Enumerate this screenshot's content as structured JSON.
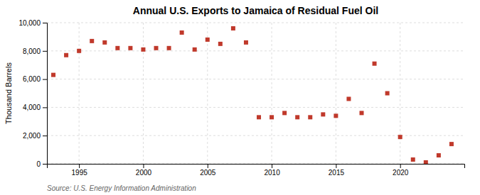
{
  "chart_data": {
    "type": "scatter",
    "title": "Annual U.S. Exports to Jamaica of Residual Fuel Oil",
    "ylabel": "Thousand Barrels",
    "source": "Source: U.S. Energy Information Administration",
    "x": [
      1993,
      1994,
      1995,
      1996,
      1997,
      1998,
      1999,
      2000,
      2001,
      2002,
      2003,
      2004,
      2005,
      2006,
      2007,
      2008,
      2009,
      2010,
      2011,
      2012,
      2013,
      2014,
      2015,
      2016,
      2017,
      2018,
      2019,
      2020,
      2021,
      2022,
      2023,
      2024
    ],
    "values": [
      6300,
      7700,
      8000,
      8700,
      8600,
      8200,
      8200,
      8100,
      8200,
      8200,
      9300,
      8100,
      8800,
      8500,
      9600,
      8600,
      3300,
      3300,
      3600,
      3300,
      3300,
      3500,
      3400,
      4600,
      3600,
      7100,
      5000,
      1900,
      300,
      100,
      600,
      1400
    ],
    "color": "#c0392b",
    "marker": "square",
    "xlim": [
      1992.5,
      2025
    ],
    "xticks": [
      1995,
      2000,
      2005,
      2010,
      2015,
      2020
    ],
    "ylim": [
      0,
      10000
    ],
    "yticks": [
      0,
      {
        "value": 2000,
        "label": "2,000"
      },
      {
        "value": 4000,
        "label": "4,000"
      },
      {
        "value": 6000,
        "label": "6,000"
      },
      {
        "value": 8000,
        "label": "8,000"
      },
      {
        "value": 10000,
        "label": "10,000"
      }
    ],
    "grid": true
  }
}
